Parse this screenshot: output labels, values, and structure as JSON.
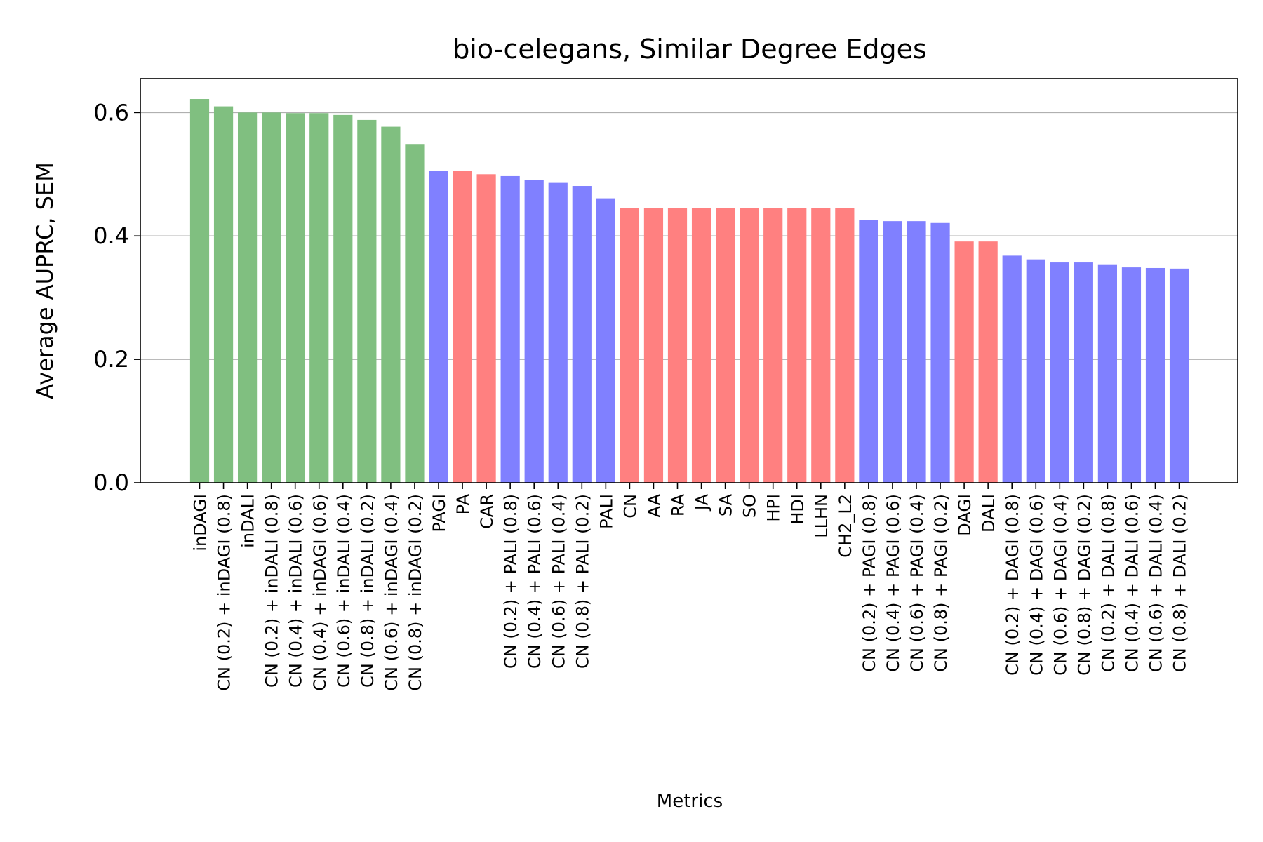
{
  "chart_data": {
    "type": "bar",
    "title": "bio-celegans, Similar Degree Edges",
    "xlabel": "Metrics",
    "ylabel": "Average AUPRC, SEM",
    "ylim": [
      0,
      0.655
    ],
    "yticks": [
      0.0,
      0.2,
      0.4,
      0.6
    ],
    "ytick_labels": [
      "0.0",
      "0.2",
      "0.4",
      "0.6"
    ],
    "grid": "horizontal",
    "colors": {
      "green": "#80bf80",
      "blue": "#8080ff",
      "red": "#ff8080"
    },
    "categories": [
      "inDAGI",
      "CN (0.2) + inDAGI (0.8)",
      "inDALI",
      "CN (0.2) + inDALI (0.8)",
      "CN (0.4) + inDALI (0.6)",
      "CN (0.4) + inDAGI (0.6)",
      "CN (0.6) + inDALI (0.4)",
      "CN (0.8) + inDALI (0.2)",
      "CN (0.6) + inDAGI (0.4)",
      "CN (0.8) + inDAGI (0.2)",
      "PAGI",
      "PA",
      "CAR",
      "CN (0.2) + PALI (0.8)",
      "CN (0.4) + PALI (0.6)",
      "CN (0.6) + PALI (0.4)",
      "CN (0.8) + PALI (0.2)",
      "PALI",
      "CN",
      "AA",
      "RA",
      "JA",
      "SA",
      "SO",
      "HPI",
      "HDI",
      "LLHN",
      "CH2_L2",
      "CN (0.2) + PAGI (0.8)",
      "CN (0.4) + PAGI (0.6)",
      "CN (0.6) + PAGI (0.4)",
      "CN (0.8) + PAGI (0.2)",
      "DAGI",
      "DALI",
      "CN (0.2) + DAGI (0.8)",
      "CN (0.4) + DAGI (0.6)",
      "CN (0.6) + DAGI (0.4)",
      "CN (0.8) + DAGI (0.2)",
      "CN (0.2) + DALI (0.8)",
      "CN (0.4) + DALI (0.6)",
      "CN (0.6) + DALI (0.4)",
      "CN (0.8) + DALI (0.2)"
    ],
    "values": [
      0.622,
      0.61,
      0.6,
      0.6,
      0.599,
      0.599,
      0.596,
      0.588,
      0.577,
      0.549,
      0.506,
      0.505,
      0.5,
      0.497,
      0.491,
      0.486,
      0.481,
      0.461,
      0.445,
      0.445,
      0.445,
      0.445,
      0.445,
      0.445,
      0.445,
      0.445,
      0.445,
      0.445,
      0.426,
      0.424,
      0.424,
      0.421,
      0.391,
      0.391,
      0.368,
      0.362,
      0.357,
      0.357,
      0.354,
      0.349,
      0.348,
      0.347
    ],
    "bar_colors": [
      "green",
      "green",
      "green",
      "green",
      "green",
      "green",
      "green",
      "green",
      "green",
      "green",
      "blue",
      "red",
      "red",
      "blue",
      "blue",
      "blue",
      "blue",
      "blue",
      "red",
      "red",
      "red",
      "red",
      "red",
      "red",
      "red",
      "red",
      "red",
      "red",
      "blue",
      "blue",
      "blue",
      "blue",
      "red",
      "red",
      "blue",
      "blue",
      "blue",
      "blue",
      "blue",
      "blue",
      "blue",
      "blue"
    ]
  }
}
